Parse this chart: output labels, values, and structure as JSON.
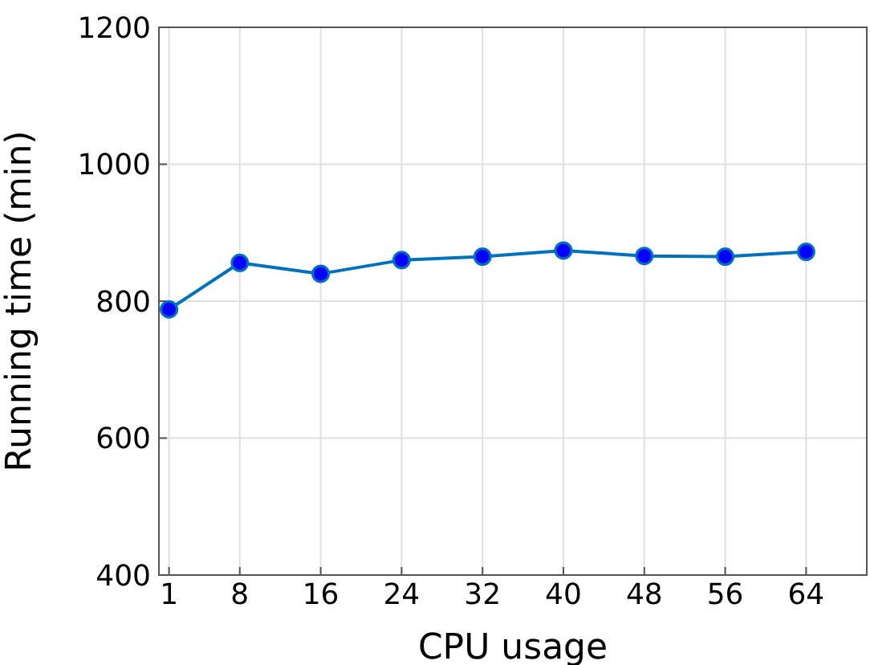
{
  "chart_data": {
    "type": "line",
    "xlabel": "CPU usage",
    "ylabel": "Running time (min)",
    "x": [
      1,
      8,
      16,
      24,
      32,
      40,
      48,
      56,
      64
    ],
    "series": [
      {
        "color": "#0072bd",
        "values": [
          788,
          856,
          840,
          860,
          865,
          874,
          866,
          865,
          872
        ]
      }
    ],
    "xlim": [
      0,
      70
    ],
    "xticks": [
      1,
      8,
      16,
      24,
      32,
      40,
      48,
      56,
      64
    ],
    "ylim": [
      400,
      1200
    ],
    "yticks": [
      400,
      600,
      800,
      1000,
      1200
    ],
    "grid": true,
    "marker": "circle",
    "line_style": "solid",
    "legend": false
  }
}
